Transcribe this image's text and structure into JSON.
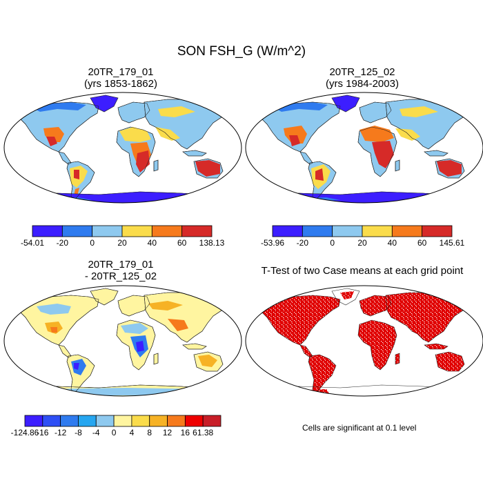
{
  "figure": {
    "title": "SON FSH_G (W/m^2)",
    "footnote": "Cells are significant at 0.1 level"
  },
  "panels": [
    {
      "id": "case1",
      "title_line1": "20TR_179_01",
      "title_line2": "(yrs 1853-1862)",
      "colorbar": {
        "colors": [
          "#3c1eff",
          "#2f7bef",
          "#8ec9ef",
          "#fadc4b",
          "#f67a1c",
          "#d62a28"
        ],
        "labels": [
          "-54.01",
          "-20",
          "0",
          "20",
          "40",
          "60",
          "138.13"
        ]
      }
    },
    {
      "id": "case2",
      "title_line1": "20TR_125_02",
      "title_line2": "(yrs 1984-2003)",
      "colorbar": {
        "colors": [
          "#3c1eff",
          "#2f7bef",
          "#8ec9ef",
          "#fadc4b",
          "#f67a1c",
          "#d62a28"
        ],
        "labels": [
          "-53.96",
          "-20",
          "0",
          "20",
          "40",
          "60",
          "145.61"
        ]
      }
    },
    {
      "id": "diff",
      "title_line1": "20TR_179_01",
      "title_line2": "- 20TR_125_02",
      "colorbar": {
        "colors": [
          "#3c1eff",
          "#2e4ff5",
          "#2f7bef",
          "#26a6f0",
          "#8ec9ef",
          "#fff5a0",
          "#fadc4b",
          "#f6b225",
          "#f67a1c",
          "#ee0000",
          "#c81e28"
        ],
        "labels": [
          "-124.86",
          "-16",
          "-12",
          "-8",
          "-4",
          "0",
          "4",
          "8",
          "12",
          "16",
          "61.38"
        ]
      }
    },
    {
      "id": "ttest",
      "title_line1": "T-Test of two Case means at each grid point",
      "significance_color": "#e00000"
    }
  ]
}
